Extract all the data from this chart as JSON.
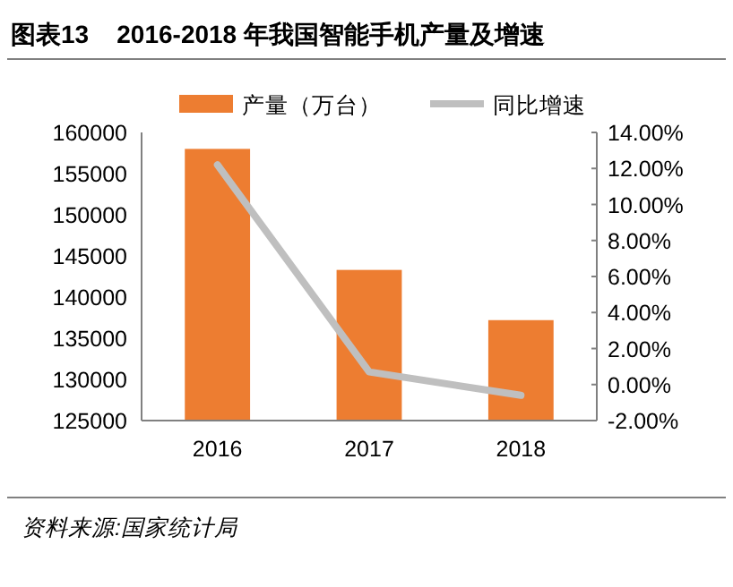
{
  "chart_data": {
    "type": "bar",
    "title": "图表13    2016-2018 年我国智能手机产量及增速",
    "categories": [
      "2016",
      "2017",
      "2018"
    ],
    "series": [
      {
        "name": "产量（万台）",
        "color": "#ed7d31",
        "values": [
          158000,
          143300,
          137200
        ]
      },
      {
        "name": "同比增速",
        "type": "line",
        "axis": "y2",
        "color": "#bfbfbf",
        "values": [
          12.2,
          0.7,
          -0.6
        ]
      }
    ],
    "ylim": [
      125000,
      160000
    ],
    "yticks": [
      125000,
      130000,
      135000,
      140000,
      145000,
      150000,
      155000,
      160000
    ],
    "y2lim": [
      -2,
      14
    ],
    "y2ticks": [
      {
        "value": -2,
        "label": "-2.00%"
      },
      {
        "value": 0,
        "label": "0.00%"
      },
      {
        "value": 2,
        "label": "2.00%"
      },
      {
        "value": 4,
        "label": "4.00%"
      },
      {
        "value": 6,
        "label": "6.00%"
      },
      {
        "value": 8,
        "label": "8.00%"
      },
      {
        "value": 10,
        "label": "10.00%"
      },
      {
        "value": 12,
        "label": "12.00%"
      },
      {
        "value": 14,
        "label": "14.00%"
      }
    ],
    "legend": "top",
    "grid": false,
    "annotations": [
      "资料来源:国家统计局"
    ]
  }
}
